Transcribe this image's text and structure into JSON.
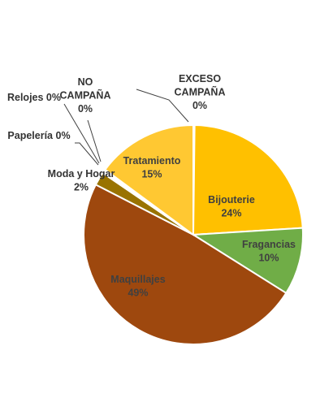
{
  "chart_data": {
    "type": "pie",
    "title": "",
    "slices": [
      {
        "name": "EXCESO CAMPAÑA",
        "lines": [
          "EXCESO",
          "CAMPAÑA"
        ],
        "value": 0,
        "pct": "0%",
        "color": "#FFC000"
      },
      {
        "name": "Bijouterie",
        "lines": [
          "Bijouterie"
        ],
        "value": 24,
        "pct": "24%",
        "color": "#FFC000"
      },
      {
        "name": "Fragancias",
        "lines": [
          "Fragancias"
        ],
        "value": 10,
        "pct": "10%",
        "color": "#70AD47"
      },
      {
        "name": "Maquillajes",
        "lines": [
          "Maquillajes"
        ],
        "value": 49,
        "pct": "49%",
        "color": "#9E480E"
      },
      {
        "name": "Moda y Hogar",
        "lines": [
          "Moda y Hogar"
        ],
        "value": 2,
        "pct": "2%",
        "color": "#997300"
      },
      {
        "name": "Papelería",
        "lines": [
          "Papelería"
        ],
        "value": 0,
        "pct": "0%",
        "color": "#F4B183"
      },
      {
        "name": "Relojes",
        "lines": [
          "Relojes"
        ],
        "value": 0,
        "pct": "0%",
        "color": "#A9D18E"
      },
      {
        "name": "NO CAMPAÑA",
        "lines": [
          "NO",
          "CAMPAÑA"
        ],
        "value": 0,
        "pct": "0%",
        "color": "#ED7D31"
      },
      {
        "name": "Tratamiento",
        "lines": [
          "Tratamiento"
        ],
        "value": 15,
        "pct": "15%",
        "color": "#FFC832"
      }
    ],
    "start_angle_deg": 0,
    "direction": "clockwise",
    "legend": "none",
    "label_colors": {
      "inside": "#404040",
      "outside": "#333333"
    }
  }
}
